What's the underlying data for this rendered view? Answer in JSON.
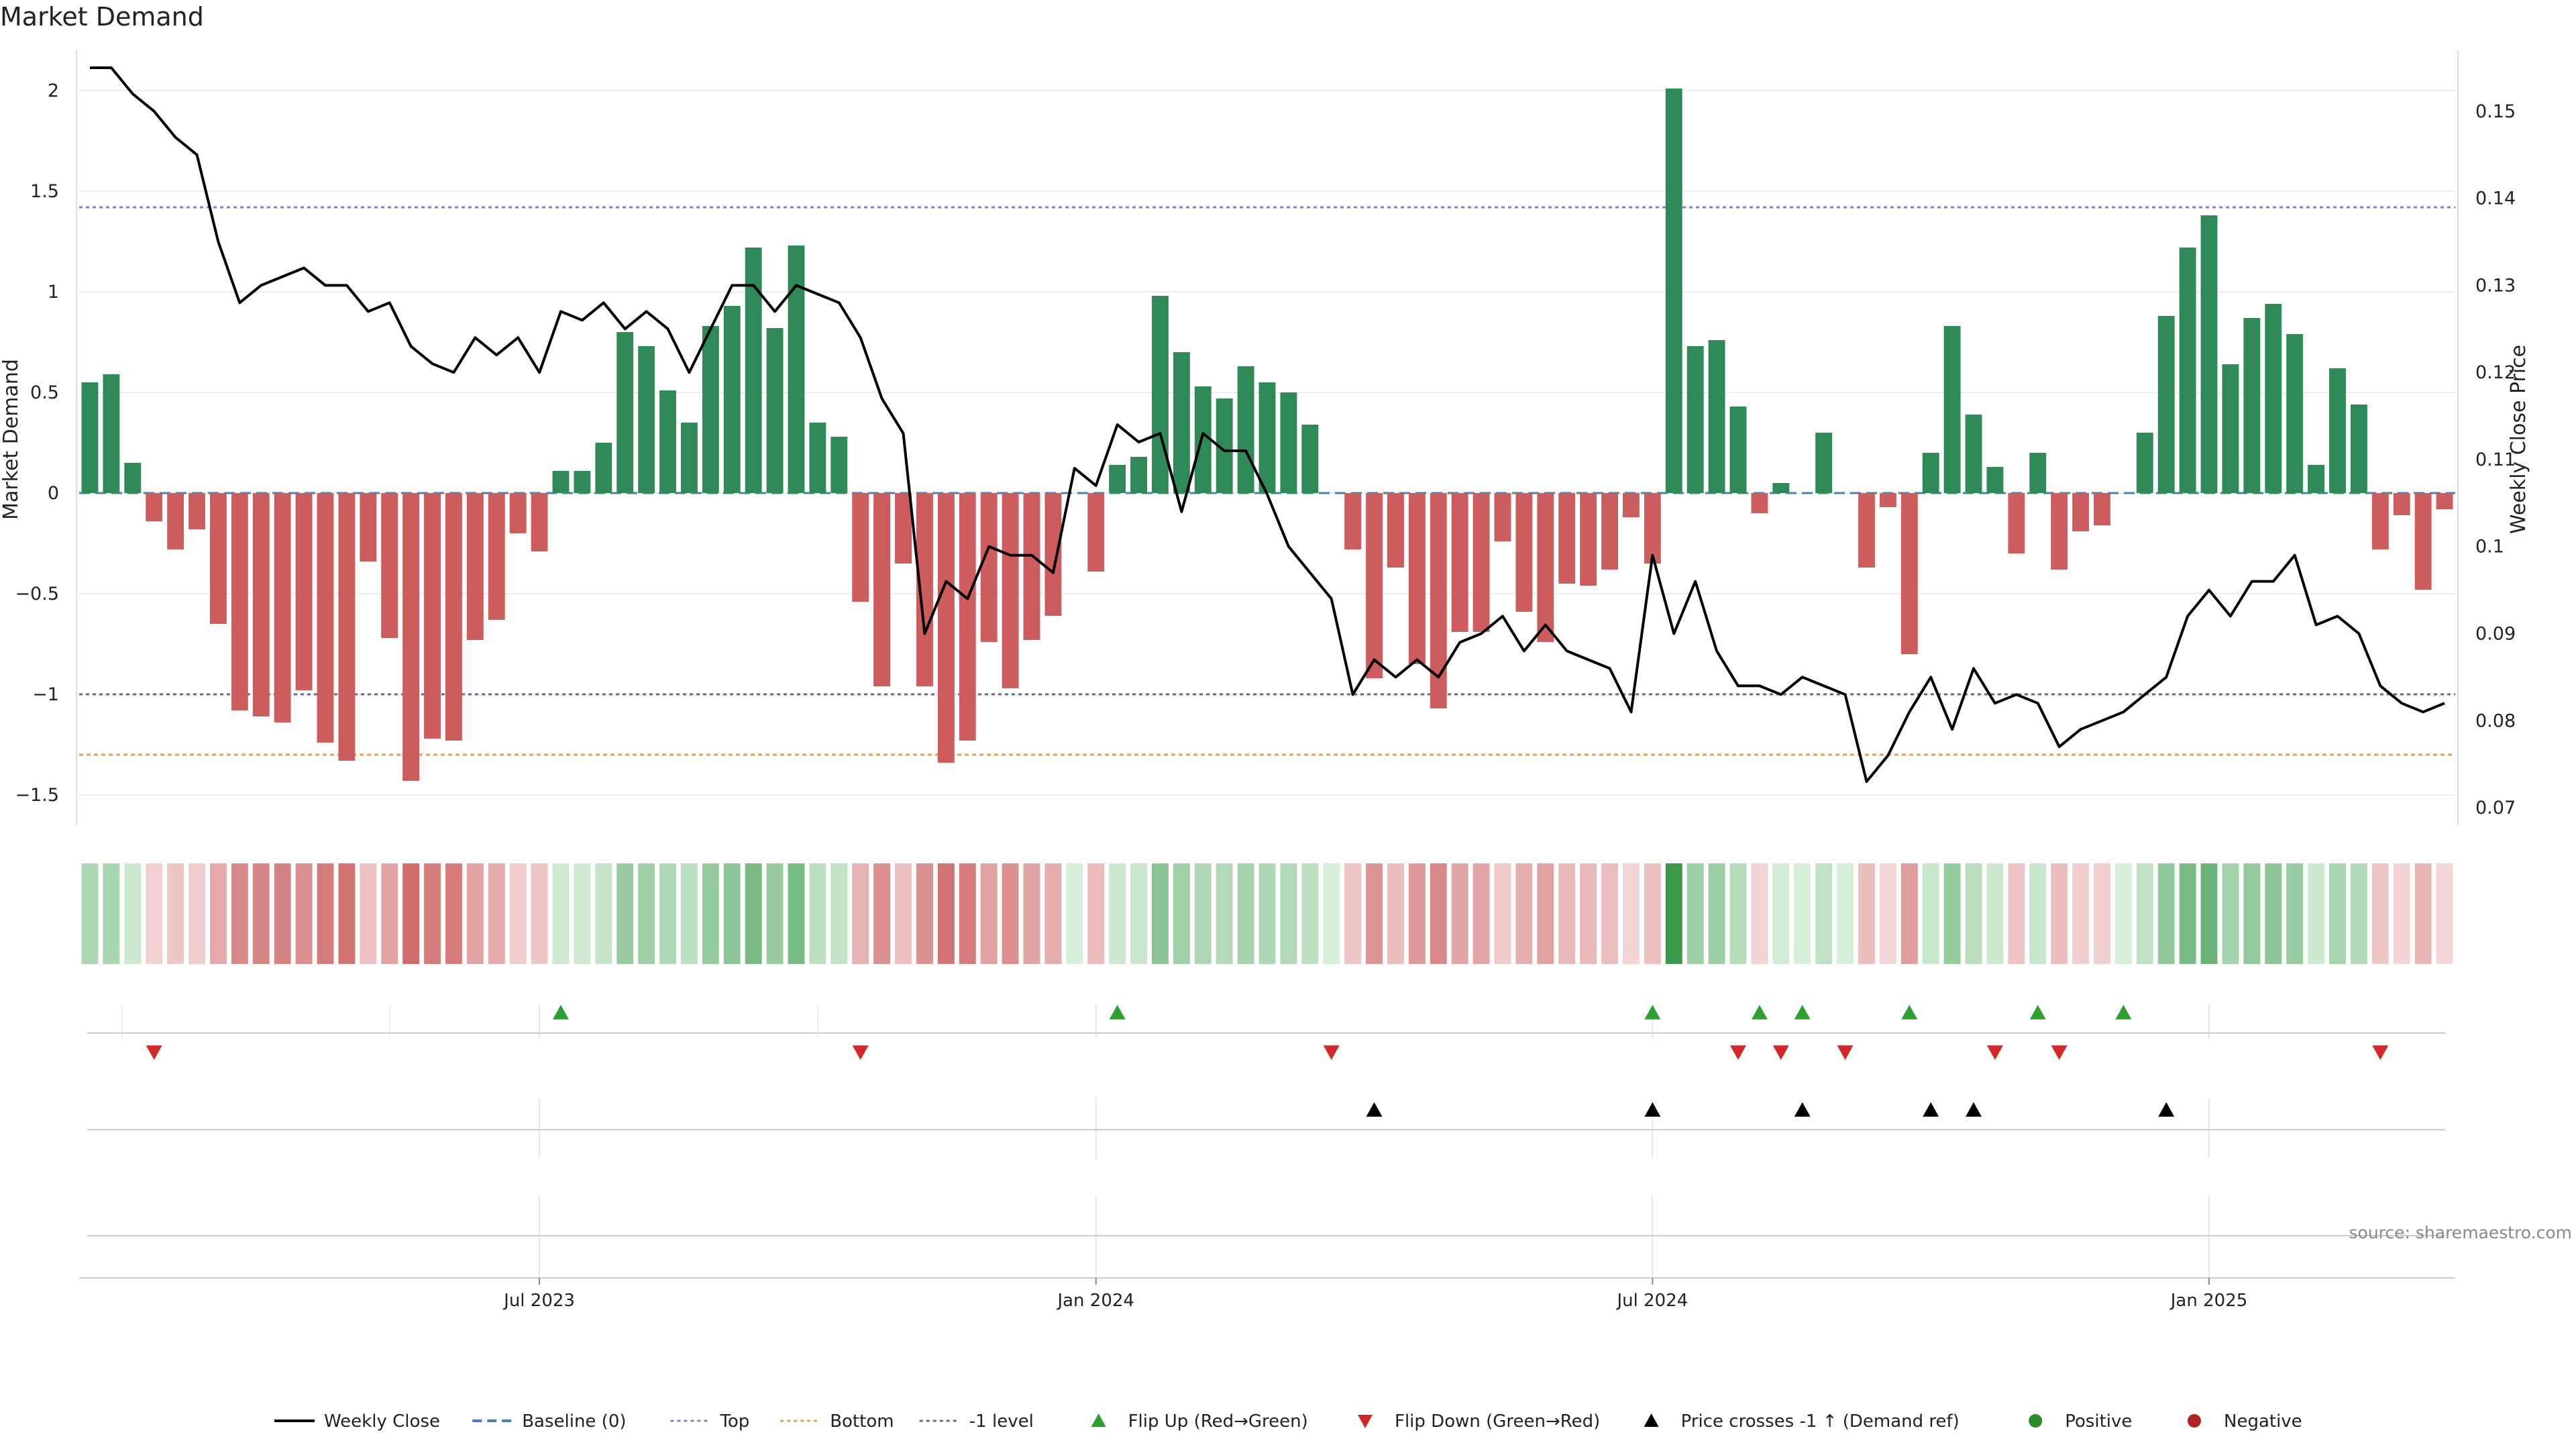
{
  "title": "Market Demand",
  "source": "source: sharemaestro.com",
  "colors": {
    "positive": "#2e8b57",
    "negative": "#cd5c5c",
    "price": "#000000",
    "baseline": "#4a7fb5",
    "top": "#8a7cc4",
    "bottom": "#e0a050",
    "minus_one": "#6a6a8a",
    "flip_up": "#2ca02c",
    "flip_down": "#d62728",
    "cross": "#000000",
    "dot_positive": "#2a8a2a",
    "dot_negative": "#b22222"
  },
  "legend": [
    {
      "label": "Weekly Close",
      "kind": "line",
      "color": "#000000"
    },
    {
      "label": "Baseline (0)",
      "kind": "dashed",
      "color": "#4a7fb5"
    },
    {
      "label": "Top",
      "kind": "dotted",
      "color": "#8a7cc4"
    },
    {
      "label": "Bottom",
      "kind": "dotted",
      "color": "#e0a050"
    },
    {
      "label": "-1 level",
      "kind": "dotted",
      "color": "#6a6a8a"
    },
    {
      "label": "Flip Up (Red→Green)",
      "kind": "tri-up",
      "color": "#2ca02c"
    },
    {
      "label": "Flip Down (Green→Red)",
      "kind": "tri-down",
      "color": "#d62728"
    },
    {
      "label": "Price crosses -1 ↑ (Demand ref)",
      "kind": "tri-up",
      "color": "#000000"
    },
    {
      "label": "Positive",
      "kind": "dot",
      "color": "#2a8a2a"
    },
    {
      "label": "Negative",
      "kind": "dot",
      "color": "#b22222"
    }
  ],
  "chart_data": {
    "type": "bar",
    "ylabel": "Market Demand",
    "ylabel_right": "Weekly Close Price",
    "ylim": [
      -1.65,
      2.2
    ],
    "ylim_right": [
      0.068,
      0.157
    ],
    "yticks": [
      2,
      1.5,
      1,
      0.5,
      0,
      -0.5,
      -1,
      -1.5
    ],
    "yticks_labels": [
      "2",
      "1.5",
      "1",
      "0.5",
      "0",
      "−0.5",
      "−1",
      "−1.5"
    ],
    "yticks_right": [
      0.15,
      0.14,
      0.13,
      0.12,
      0.11,
      0.1,
      0.09,
      0.08,
      0.07
    ],
    "yticks_right_labels": [
      "0.15",
      "0.14",
      "0.13",
      "0.12",
      "0.11",
      "0.1",
      "0.09",
      "0.08",
      "0.07"
    ],
    "x_ticks": [
      {
        "label": "Jul 2023",
        "week": 21
      },
      {
        "label": "Jan 2024",
        "week": 47
      },
      {
        "label": "Jul 2024",
        "week": 73
      },
      {
        "label": "Jan 2025",
        "week": 99
      }
    ],
    "reference_lines": {
      "baseline": 0,
      "top": 1.42,
      "bottom": -1.3,
      "minus_one": -1.0
    },
    "values": [
      0.55,
      0.59,
      0.15,
      -0.14,
      -0.28,
      -0.18,
      -0.65,
      -1.08,
      -1.11,
      -1.14,
      -0.98,
      -1.24,
      -1.33,
      -0.34,
      -0.72,
      -1.43,
      -1.22,
      -1.23,
      -0.73,
      -0.63,
      -0.2,
      -0.29,
      0.11,
      0.11,
      0.25,
      0.8,
      0.73,
      0.51,
      0.35,
      0.83,
      0.93,
      1.22,
      0.82,
      1.23,
      0.35,
      0.28,
      -0.54,
      -0.96,
      -0.35,
      -0.96,
      -1.34,
      -1.23,
      -0.74,
      -0.97,
      -0.73,
      -0.61,
      0,
      -0.39,
      0.14,
      0.18,
      0.98,
      0.7,
      0.53,
      0.47,
      0.63,
      0.55,
      0.5,
      0.34,
      0,
      -0.28,
      -0.92,
      -0.37,
      -0.85,
      -1.07,
      -0.69,
      -0.69,
      -0.24,
      -0.59,
      -0.74,
      -0.45,
      -0.46,
      -0.38,
      -0.12,
      -0.35,
      2.01,
      0.73,
      0.76,
      0.43,
      -0.1,
      0.05,
      0,
      0.3,
      0,
      -0.37,
      -0.07,
      -0.8,
      0.2,
      0.83,
      0.39,
      0.13,
      -0.3,
      0.2,
      -0.38,
      -0.19,
      -0.16,
      0,
      0.3,
      0.88,
      1.22,
      1.38,
      0.64,
      0.87,
      0.94,
      0.79,
      0.14,
      0.62,
      0.44,
      -0.28,
      -0.11,
      -0.48,
      -0.08
    ],
    "series": [
      {
        "name": "Weekly Close",
        "values": [
          0.155,
          0.155,
          0.152,
          0.15,
          0.147,
          0.145,
          0.135,
          0.128,
          0.13,
          0.131,
          0.132,
          0.13,
          0.13,
          0.127,
          0.128,
          0.123,
          0.121,
          0.12,
          0.124,
          0.122,
          0.124,
          0.12,
          0.127,
          0.126,
          0.128,
          0.125,
          0.127,
          0.125,
          0.12,
          0.125,
          0.13,
          0.13,
          0.127,
          0.13,
          0.129,
          0.128,
          0.124,
          0.117,
          0.113,
          0.09,
          0.096,
          0.094,
          0.1,
          0.099,
          0.099,
          0.097,
          0.109,
          0.107,
          0.114,
          0.112,
          0.113,
          0.104,
          0.113,
          0.111,
          0.111,
          0.106,
          0.1,
          0.097,
          0.094,
          0.083,
          0.087,
          0.085,
          0.087,
          0.085,
          0.089,
          0.09,
          0.092,
          0.088,
          0.091,
          0.088,
          0.087,
          0.086,
          0.081,
          0.099,
          0.09,
          0.096,
          0.088,
          0.084,
          0.084,
          0.083,
          0.085,
          0.084,
          0.083,
          0.073,
          0.076,
          0.081,
          0.085,
          0.079,
          0.086,
          0.082,
          0.083,
          0.082,
          0.077,
          0.079,
          0.08,
          0.081,
          0.083,
          0.085,
          0.092,
          0.095,
          0.092,
          0.096,
          0.096,
          0.099,
          0.091,
          0.092,
          0.09,
          0.084,
          0.082,
          0.081,
          0.082
        ]
      }
    ],
    "flip_up_weeks": [
      22,
      48,
      73,
      78,
      80,
      85,
      91,
      95
    ],
    "flip_down_weeks": [
      3,
      36,
      58,
      77,
      79,
      82,
      89,
      92,
      107
    ],
    "price_cross_weeks": [
      60,
      73,
      80,
      86,
      88,
      97
    ],
    "heat_strip": "one cell per week shaded by demand value (green positive, red negative)"
  }
}
